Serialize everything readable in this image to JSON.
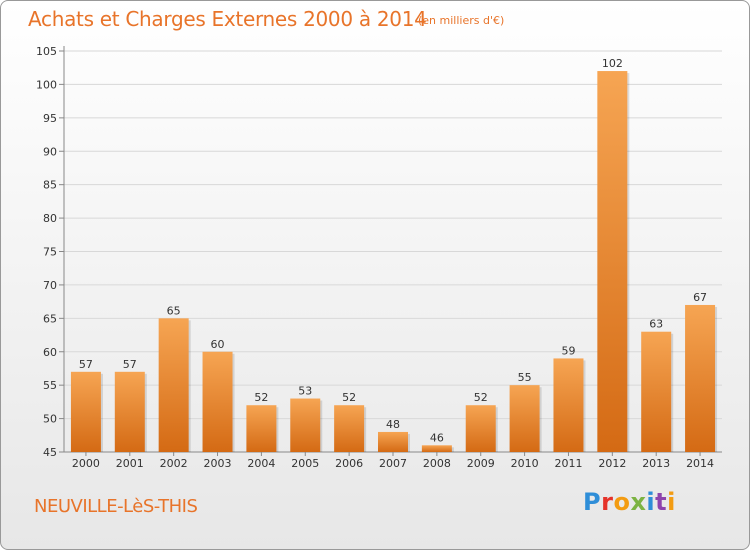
{
  "title": "Achats et Charges Externes 2000 à 2014",
  "unit": "(en milliers d'€)",
  "commune": "NEUVILLE-LèS-THIS",
  "logo": {
    "text": "Proxiti",
    "letter_colors": [
      "#2f8ed8",
      "#e5332a",
      "#f39c12",
      "#7cb342",
      "#2f8ed8",
      "#8e44ad",
      "#f39c12"
    ]
  },
  "colors": {
    "title": "#e8742a",
    "bar_top": "#f6a553",
    "bar_bottom": "#d46a14",
    "axis": "#888888",
    "grid": "#d8d8d8"
  },
  "chart_data": {
    "type": "bar",
    "categories": [
      "2000",
      "2001",
      "2002",
      "2003",
      "2004",
      "2005",
      "2006",
      "2007",
      "2008",
      "2009",
      "2010",
      "2011",
      "2012",
      "2013",
      "2014"
    ],
    "values": [
      57,
      57,
      65,
      60,
      52,
      53,
      52,
      48,
      46,
      52,
      55,
      59,
      102,
      63,
      67
    ],
    "ylim": [
      45,
      105
    ],
    "yticks": [
      45,
      50,
      55,
      60,
      65,
      70,
      75,
      80,
      85,
      90,
      95,
      100,
      105
    ],
    "grid": true
  }
}
